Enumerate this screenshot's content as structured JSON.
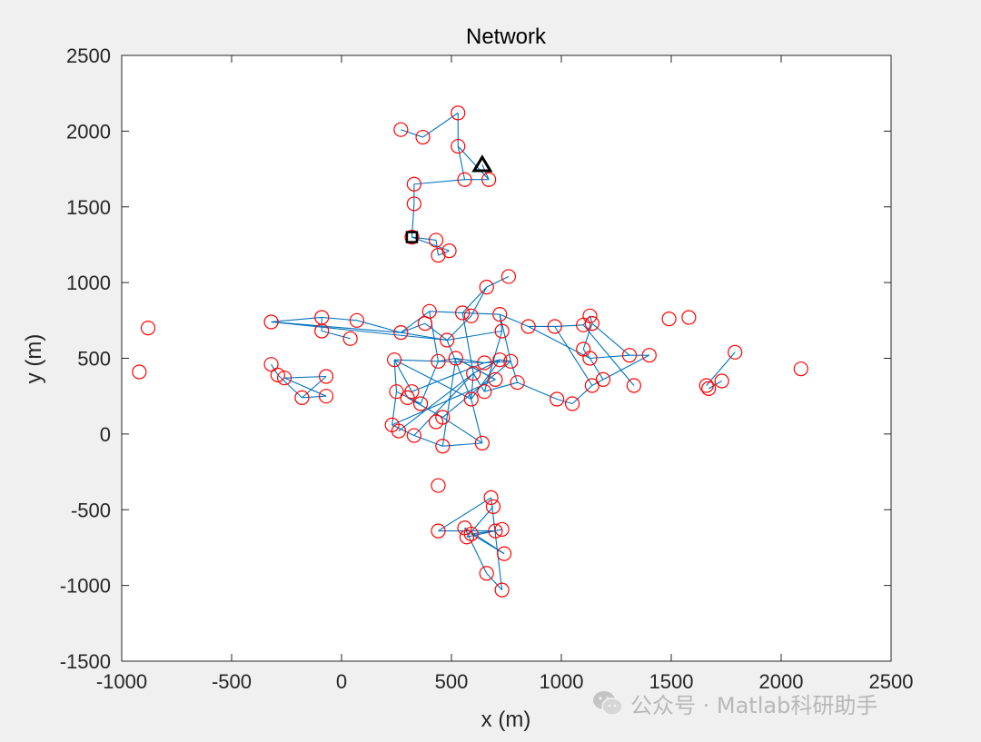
{
  "chart_data": {
    "type": "scatter",
    "title": "Network",
    "xlabel": "x (m)",
    "ylabel": "y (m)",
    "xlim": [
      -1000,
      2500
    ],
    "ylim": [
      -1500,
      2500
    ],
    "xticks": [
      "-1000",
      "-500",
      "0",
      "500",
      "1000",
      "1500",
      "2000",
      "2500"
    ],
    "yticks": [
      "2500",
      "2000",
      "1500",
      "1000",
      "500",
      "0",
      "-500",
      "-1000",
      "-1500"
    ],
    "grid": false,
    "legend": "none",
    "node_color": "#ff0000",
    "edge_color": "#0072bd",
    "nodes": [
      [
        270,
        2010
      ],
      [
        370,
        1960
      ],
      [
        530,
        2120
      ],
      [
        530,
        1900
      ],
      [
        560,
        1680
      ],
      [
        670,
        1680
      ],
      [
        330,
        1650
      ],
      [
        330,
        1520
      ],
      [
        320,
        1300
      ],
      [
        430,
        1280
      ],
      [
        440,
        1180
      ],
      [
        490,
        1210
      ],
      [
        760,
        1040
      ],
      [
        660,
        970
      ],
      [
        -320,
        740
      ],
      [
        -90,
        770
      ],
      [
        -90,
        680
      ],
      [
        70,
        750
      ],
      [
        40,
        630
      ],
      [
        270,
        670
      ],
      [
        400,
        810
      ],
      [
        380,
        730
      ],
      [
        480,
        620
      ],
      [
        550,
        800
      ],
      [
        590,
        780
      ],
      [
        720,
        790
      ],
      [
        730,
        680
      ],
      [
        850,
        710
      ],
      [
        970,
        710
      ],
      [
        1100,
        720
      ],
      [
        1130,
        780
      ],
      [
        1140,
        730
      ],
      [
        1100,
        560
      ],
      [
        1130,
        500
      ],
      [
        1310,
        520
      ],
      [
        1400,
        520
      ],
      [
        1190,
        360
      ],
      [
        1330,
        320
      ],
      [
        1140,
        320
      ],
      [
        1050,
        200
      ],
      [
        980,
        230
      ],
      [
        800,
        340
      ],
      [
        770,
        480
      ],
      [
        720,
        490
      ],
      [
        650,
        470
      ],
      [
        520,
        500
      ],
      [
        600,
        400
      ],
      [
        700,
        360
      ],
      [
        650,
        280
      ],
      [
        590,
        230
      ],
      [
        440,
        480
      ],
      [
        240,
        490
      ],
      [
        250,
        280
      ],
      [
        320,
        280
      ],
      [
        300,
        240
      ],
      [
        360,
        200
      ],
      [
        460,
        110
      ],
      [
        460,
        -80
      ],
      [
        640,
        -60
      ],
      [
        430,
        80
      ],
      [
        330,
        -10
      ],
      [
        260,
        20
      ],
      [
        230,
        60
      ],
      [
        -320,
        460
      ],
      [
        -290,
        390
      ],
      [
        -260,
        370
      ],
      [
        -180,
        240
      ],
      [
        -70,
        380
      ],
      [
        -70,
        250
      ],
      [
        -880,
        700
      ],
      [
        -920,
        410
      ],
      [
        1490,
        760
      ],
      [
        1580,
        770
      ],
      [
        1660,
        320
      ],
      [
        1670,
        300
      ],
      [
        1730,
        350
      ],
      [
        1790,
        540
      ],
      [
        2090,
        430
      ],
      [
        440,
        -340
      ],
      [
        680,
        -420
      ],
      [
        690,
        -480
      ],
      [
        440,
        -640
      ],
      [
        560,
        -620
      ],
      [
        570,
        -680
      ],
      [
        590,
        -660
      ],
      [
        700,
        -640
      ],
      [
        730,
        -630
      ],
      [
        740,
        -790
      ],
      [
        660,
        -920
      ],
      [
        730,
        -1030
      ]
    ],
    "edges": [
      [
        270,
        2010,
        370,
        1960
      ],
      [
        370,
        1960,
        530,
        2120
      ],
      [
        530,
        2120,
        530,
        1900
      ],
      [
        530,
        1900,
        560,
        1680
      ],
      [
        560,
        1680,
        670,
        1680
      ],
      [
        670,
        1680,
        530,
        1900
      ],
      [
        560,
        1680,
        330,
        1650
      ],
      [
        330,
        1650,
        330,
        1520
      ],
      [
        330,
        1520,
        320,
        1300
      ],
      [
        320,
        1300,
        430,
        1280
      ],
      [
        430,
        1280,
        440,
        1180
      ],
      [
        440,
        1180,
        490,
        1210
      ],
      [
        320,
        1300,
        490,
        1210
      ],
      [
        640,
        1780,
        670,
        1680
      ],
      [
        -320,
        740,
        270,
        670
      ],
      [
        -320,
        740,
        -90,
        770
      ],
      [
        -90,
        770,
        70,
        750
      ],
      [
        -90,
        770,
        -90,
        680
      ],
      [
        -90,
        680,
        40,
        630
      ],
      [
        70,
        750,
        270,
        670
      ],
      [
        270,
        670,
        400,
        810
      ],
      [
        400,
        810,
        550,
        800
      ],
      [
        550,
        800,
        720,
        790
      ],
      [
        720,
        790,
        850,
        710
      ],
      [
        850,
        710,
        970,
        710
      ],
      [
        970,
        710,
        1100,
        720
      ],
      [
        1100,
        720,
        1130,
        780
      ],
      [
        1130,
        780,
        1140,
        730
      ],
      [
        1140,
        730,
        1100,
        560
      ],
      [
        1100,
        560,
        1130,
        500
      ],
      [
        1130,
        500,
        1310,
        520
      ],
      [
        1310,
        520,
        1400,
        520
      ],
      [
        1400,
        520,
        1190,
        360
      ],
      [
        1190,
        360,
        1140,
        320
      ],
      [
        1140,
        320,
        1050,
        200
      ],
      [
        1050,
        200,
        980,
        230
      ],
      [
        980,
        230,
        800,
        340
      ],
      [
        800,
        340,
        770,
        480
      ],
      [
        770,
        480,
        720,
        490
      ],
      [
        720,
        490,
        650,
        470
      ],
      [
        650,
        470,
        520,
        500
      ],
      [
        520,
        500,
        440,
        480
      ],
      [
        440,
        480,
        240,
        490
      ],
      [
        240,
        490,
        250,
        280
      ],
      [
        250,
        280,
        230,
        60
      ],
      [
        230,
        60,
        330,
        -10
      ],
      [
        330,
        -10,
        460,
        -80
      ],
      [
        460,
        -80,
        640,
        -60
      ],
      [
        640,
        -60,
        460,
        110
      ],
      [
        460,
        110,
        300,
        240
      ],
      [
        300,
        240,
        360,
        200
      ],
      [
        360,
        200,
        440,
        480
      ],
      [
        480,
        620,
        590,
        780
      ],
      [
        590,
        780,
        660,
        970
      ],
      [
        660,
        970,
        760,
        1040
      ],
      [
        660,
        970,
        550,
        800
      ],
      [
        730,
        680,
        480,
        620
      ],
      [
        480,
        620,
        380,
        730
      ],
      [
        380,
        730,
        270,
        670
      ],
      [
        -320,
        460,
        -290,
        390
      ],
      [
        -290,
        390,
        -180,
        240
      ],
      [
        -180,
        240,
        -70,
        380
      ],
      [
        -70,
        380,
        -260,
        370
      ],
      [
        -260,
        370,
        -70,
        250
      ],
      [
        -70,
        250,
        -180,
        240
      ],
      [
        1660,
        320,
        1790,
        540
      ],
      [
        1670,
        300,
        1730,
        350
      ],
      [
        440,
        -640,
        680,
        -420
      ],
      [
        680,
        -420,
        730,
        -1030
      ],
      [
        730,
        -1030,
        660,
        -920
      ],
      [
        660,
        -920,
        560,
        -620
      ],
      [
        560,
        -620,
        740,
        -790
      ],
      [
        740,
        -790,
        590,
        -660
      ],
      [
        590,
        -660,
        700,
        -640
      ],
      [
        700,
        -640,
        440,
        -640
      ],
      [
        570,
        -680,
        730,
        -630
      ],
      [
        690,
        -480,
        570,
        -680
      ],
      [
        600,
        400,
        720,
        490
      ],
      [
        600,
        400,
        590,
        230
      ],
      [
        700,
        360,
        520,
        500
      ],
      [
        650,
        280,
        800,
        340
      ],
      [
        590,
        230,
        240,
        490
      ],
      [
        320,
        280,
        650,
        470
      ],
      [
        230,
        60,
        700,
        360
      ],
      [
        260,
        20,
        600,
        400
      ],
      [
        460,
        110,
        770,
        480
      ],
      [
        1100,
        720,
        1330,
        320
      ],
      [
        1140,
        730,
        1310,
        520
      ],
      [
        1130,
        500,
        1190,
        360
      ],
      [
        850,
        710,
        1130,
        500
      ],
      [
        970,
        710,
        1140,
        320
      ],
      [
        720,
        790,
        730,
        680
      ],
      [
        730,
        680,
        650,
        280
      ],
      [
        550,
        800,
        600,
        400
      ],
      [
        -320,
        740,
        480,
        620
      ],
      [
        270,
        670,
        480,
        620
      ],
      [
        400,
        810,
        440,
        480
      ],
      [
        460,
        -80,
        520,
        500
      ],
      [
        330,
        -10,
        600,
        400
      ],
      [
        640,
        -60,
        590,
        230
      ],
      [
        590,
        230,
        720,
        490
      ],
      [
        250,
        280,
        360,
        200
      ],
      [
        650,
        470,
        770,
        480
      ],
      [
        520,
        500,
        700,
        360
      ],
      [
        600,
        400,
        650,
        280
      ],
      [
        480,
        620,
        590,
        230
      ],
      [
        440,
        480,
        650,
        470
      ],
      [
        720,
        790,
        770,
        480
      ],
      [
        240,
        490,
        320,
        280
      ]
    ],
    "triangle_marker": [
      640,
      1780
    ],
    "square_marker": [
      320,
      1300
    ]
  },
  "watermark": {
    "text": "公众号 · Matlab科研助手",
    "icon": "wechat-icon"
  }
}
